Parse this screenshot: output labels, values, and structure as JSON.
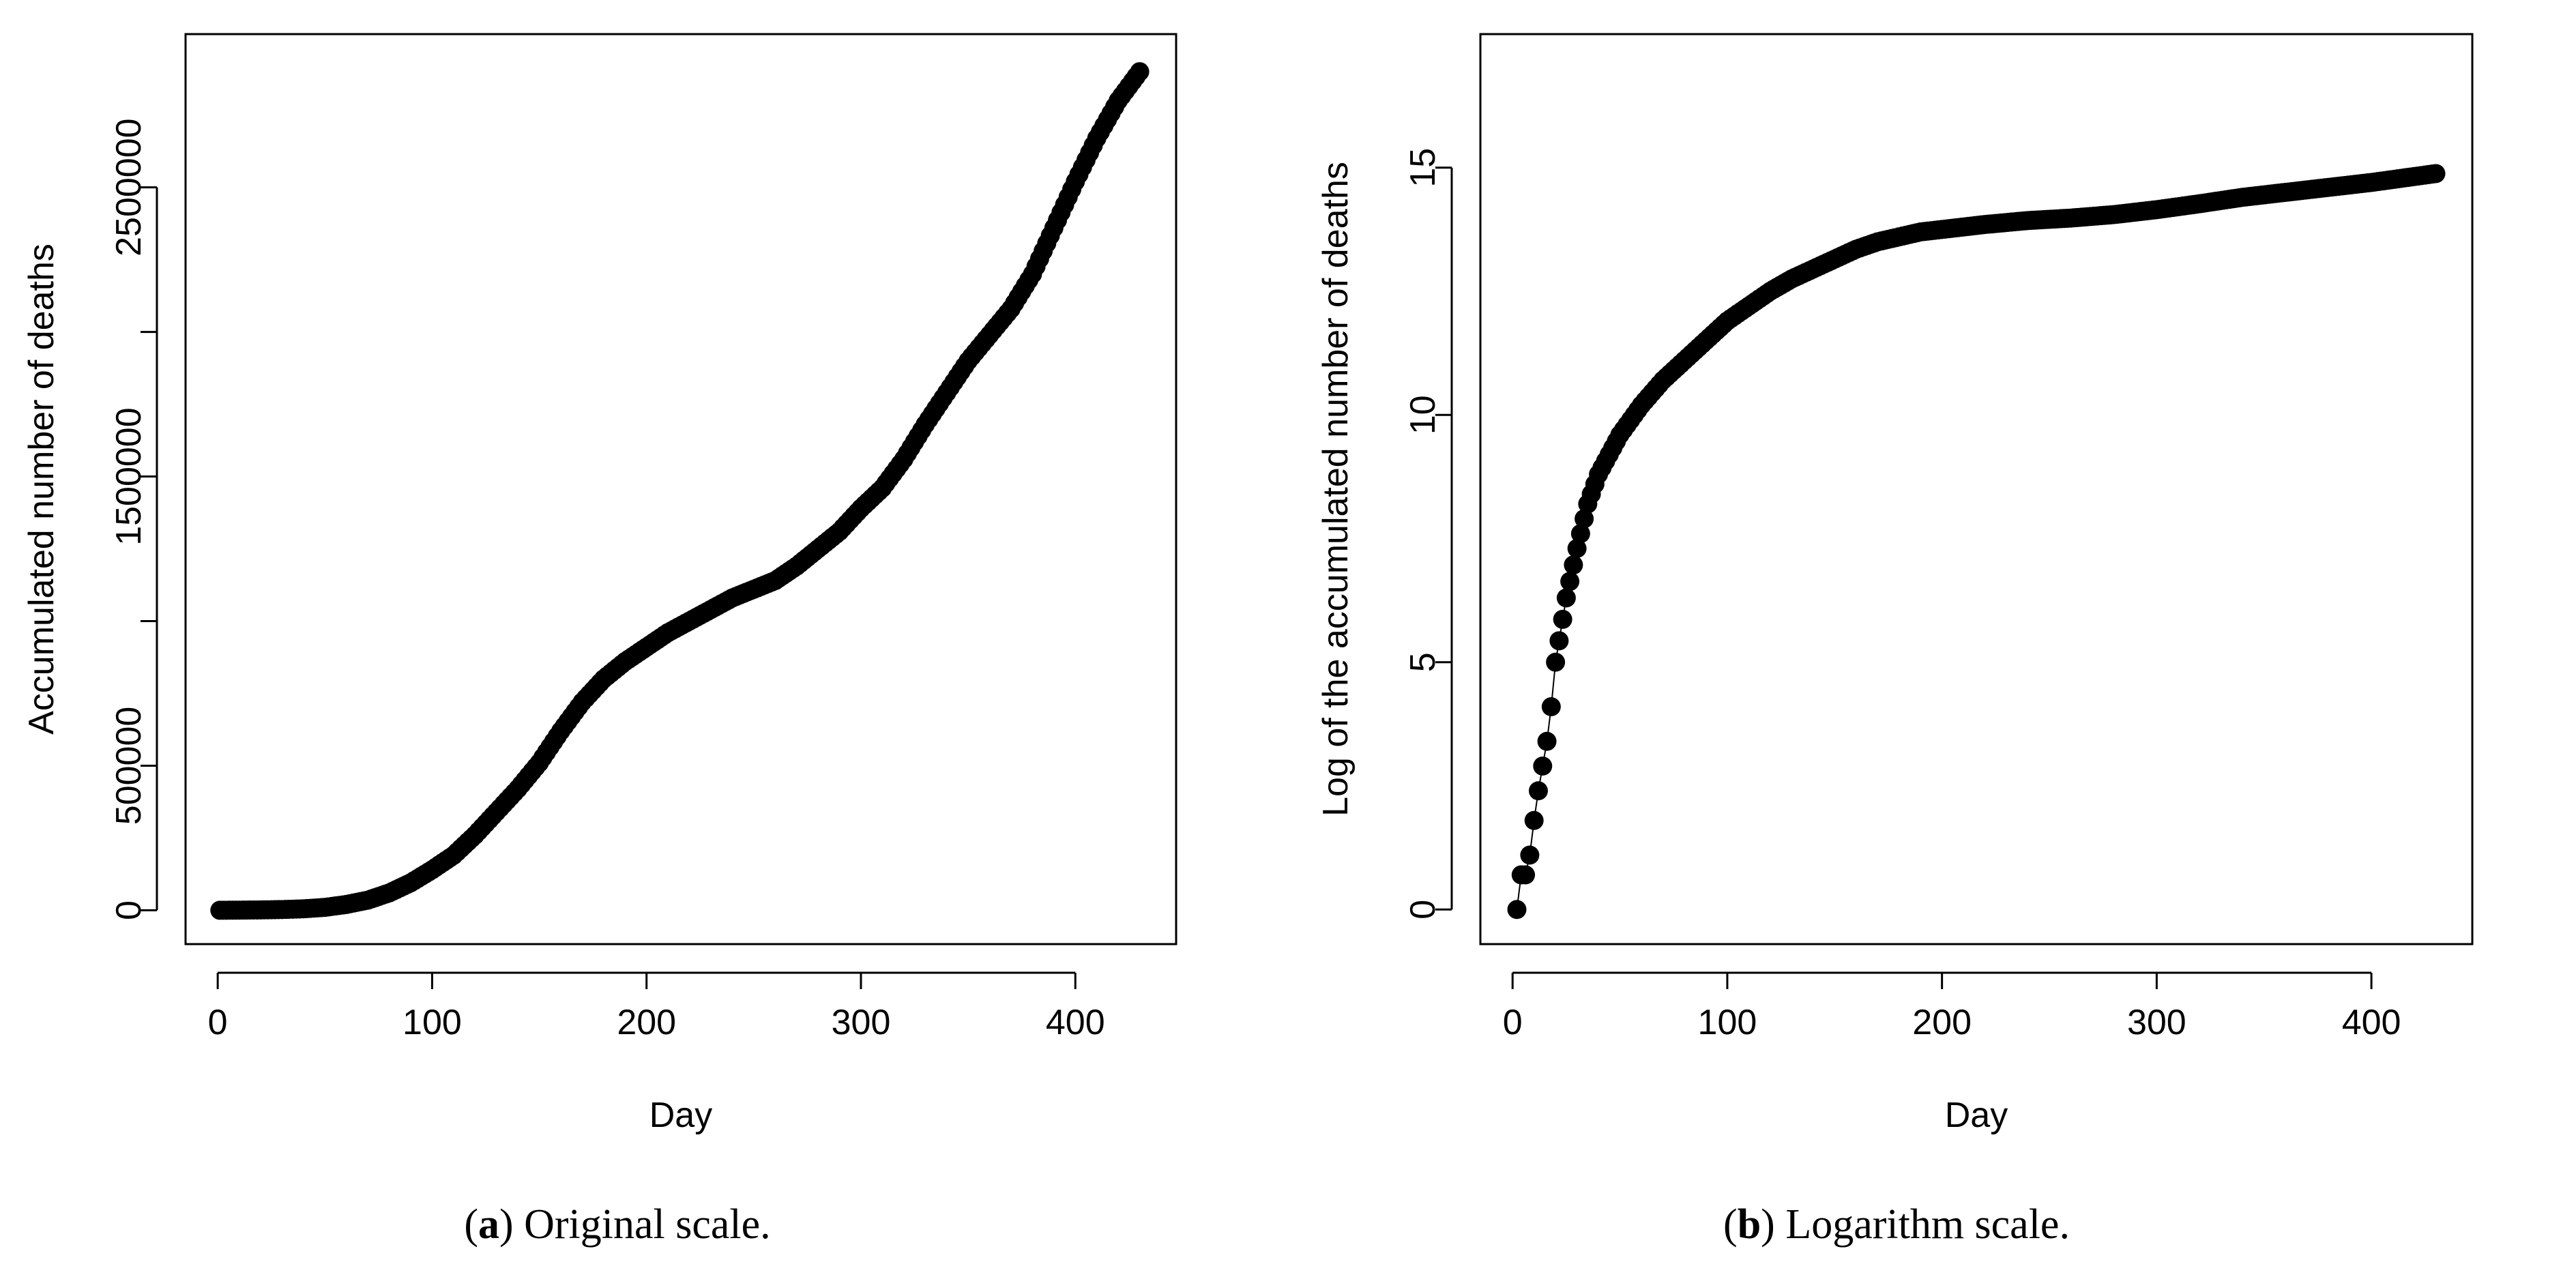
{
  "chart_data": [
    {
      "type": "scatter",
      "panel": "a",
      "xlabel": "Day",
      "ylabel": "Accumulated number of deaths",
      "xlim": [
        -15,
        447
      ],
      "ylim": [
        -117000,
        3030000
      ],
      "xticks": [
        0,
        100,
        200,
        300,
        400
      ],
      "yticks": [
        0,
        500000,
        1500000,
        2500000
      ],
      "minor_yticks": [
        1000000,
        2000000
      ],
      "x": [
        1,
        10,
        20,
        30,
        40,
        50,
        60,
        70,
        80,
        90,
        100,
        110,
        120,
        130,
        140,
        150,
        160,
        170,
        180,
        190,
        200,
        210,
        220,
        230,
        240,
        250,
        260,
        270,
        280,
        290,
        300,
        310,
        320,
        330,
        340,
        350,
        360,
        370,
        380,
        390,
        400,
        410,
        420,
        430
      ],
      "values": [
        0,
        500,
        1200,
        2500,
        5000,
        10000,
        20000,
        35000,
        60000,
        95000,
        140000,
        190000,
        260000,
        340000,
        420000,
        510000,
        620000,
        720000,
        800000,
        860000,
        910000,
        960000,
        1000000,
        1040000,
        1080000,
        1110000,
        1140000,
        1190000,
        1250000,
        1310000,
        1390000,
        1460000,
        1560000,
        1680000,
        1790000,
        1900000,
        1990000,
        2080000,
        2200000,
        2360000,
        2520000,
        2670000,
        2800000,
        2900000
      ],
      "caption_tag": "a",
      "caption_text": ") Original scale."
    },
    {
      "type": "scatter",
      "panel": "b",
      "xlabel": "Day",
      "ylabel": "Log of the accumulated number of deaths",
      "xlim": [
        -15,
        447
      ],
      "ylim": [
        -0.7,
        17.7
      ],
      "xticks": [
        0,
        100,
        200,
        300,
        400
      ],
      "yticks": [
        0,
        5,
        10,
        15
      ],
      "x": [
        2,
        4,
        6,
        8,
        10,
        12,
        14,
        16,
        18,
        20,
        25,
        30,
        35,
        40,
        45,
        50,
        60,
        70,
        80,
        90,
        100,
        110,
        120,
        130,
        140,
        150,
        160,
        170,
        180,
        190,
        200,
        220,
        240,
        260,
        280,
        300,
        320,
        340,
        360,
        380,
        400,
        420,
        430
      ],
      "values": [
        0,
        0.7,
        0.7,
        1.1,
        1.8,
        2.4,
        2.9,
        3.4,
        4.1,
        5.0,
        6.3,
        7.3,
        8.2,
        8.8,
        9.2,
        9.6,
        10.2,
        10.7,
        11.1,
        11.5,
        11.9,
        12.2,
        12.5,
        12.75,
        12.95,
        13.15,
        13.35,
        13.5,
        13.6,
        13.7,
        13.75,
        13.85,
        13.93,
        13.98,
        14.05,
        14.15,
        14.27,
        14.4,
        14.5,
        14.6,
        14.7,
        14.82,
        14.88
      ],
      "caption_tag": "b",
      "caption_text": ") Logarithm scale."
    }
  ]
}
